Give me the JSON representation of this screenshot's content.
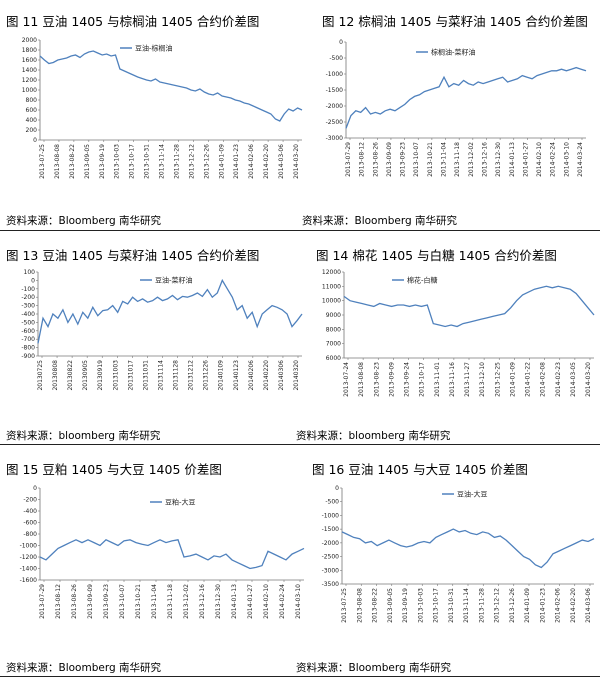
{
  "line_color": "#4F81BD",
  "figures": [
    {
      "title": "图 11 豆油 1405 与棕榈油 1405 合约价差图",
      "source": "资料来源：Bloomberg 南华研究"
    },
    {
      "title": "图 12 棕榈油 1405 与菜籽油 1405 合约价差图",
      "source": "资料来源：Bloomberg 南华研究"
    },
    {
      "title": "图 13 豆油 1405 与菜籽油 1405 合约价差图",
      "source": "资料来源：bloomberg 南华研究"
    },
    {
      "title": "图 14 棉花 1405 与白糖 1405 合约价差图",
      "source": "资料来源：bloomberg 南华研究"
    },
    {
      "title": "图 15 豆粕 1405 与大豆 1405 价差图",
      "source": "资料来源：Bloomberg 南华研究"
    },
    {
      "title": "图 16 豆油 1405 与大豆 1405 价差图",
      "source": "资料来源：Bloomberg 南华研究"
    }
  ],
  "chart_data": [
    {
      "type": "line",
      "legend": "豆油-棕榈油",
      "ylim": [
        0,
        2000
      ],
      "yticks": [
        "2000",
        "1800",
        "1600",
        "1400",
        "1200",
        "1000",
        "800",
        "600",
        "400",
        "200",
        "0"
      ],
      "xticks": [
        "2013-07-25",
        "2013-08-08",
        "2013-08-22",
        "2013-09-05",
        "2013-09-19",
        "2013-10-03",
        "2013-10-17",
        "2013-10-31",
        "2013-11-14",
        "2013-11-28",
        "2013-12-12",
        "2013-12-26",
        "2014-01-09",
        "2014-01-23",
        "2014-02-06",
        "2014-02-20",
        "2014-03-06",
        "2014-03-20"
      ],
      "values": [
        1680,
        1600,
        1530,
        1550,
        1600,
        1620,
        1640,
        1680,
        1700,
        1650,
        1720,
        1760,
        1780,
        1740,
        1700,
        1720,
        1680,
        1700,
        1420,
        1380,
        1340,
        1300,
        1260,
        1230,
        1200,
        1180,
        1220,
        1160,
        1140,
        1120,
        1100,
        1080,
        1060,
        1040,
        1000,
        980,
        1020,
        960,
        920,
        900,
        940,
        880,
        860,
        840,
        800,
        780,
        740,
        720,
        680,
        640,
        600,
        560,
        520,
        420,
        380,
        520,
        620,
        580,
        640,
        600
      ]
    },
    {
      "type": "line",
      "legend": "棕榈油-菜籽油",
      "ylim": [
        -3000,
        0
      ],
      "yticks": [
        "0",
        "-500",
        "-1000",
        "-1500",
        "-2000",
        "-2500",
        "-3000"
      ],
      "xticks": [
        "2013-07-29",
        "2013-08-12",
        "2013-08-26",
        "2013-09-09",
        "2013-09-23",
        "2013-10-07",
        "2013-10-21",
        "2013-11-04",
        "2013-11-18",
        "2013-12-02",
        "2013-12-16",
        "2013-12-30",
        "2014-01-13",
        "2014-01-27",
        "2014-02-10",
        "2014-02-24",
        "2014-03-10",
        "2014-03-24"
      ],
      "values": [
        -2700,
        -2300,
        -2150,
        -2200,
        -2050,
        -2250,
        -2200,
        -2250,
        -2150,
        -2100,
        -2150,
        -2050,
        -1950,
        -1800,
        -1700,
        -1650,
        -1550,
        -1500,
        -1450,
        -1400,
        -1100,
        -1400,
        -1300,
        -1350,
        -1200,
        -1300,
        -1350,
        -1250,
        -1300,
        -1250,
        -1200,
        -1150,
        -1100,
        -1250,
        -1200,
        -1150,
        -1050,
        -1100,
        -1150,
        -1050,
        -1000,
        -950,
        -900,
        -900,
        -850,
        -900,
        -850,
        -800,
        -850,
        -900
      ]
    },
    {
      "type": "line",
      "legend": "豆油-菜籽油",
      "ylim": [
        -900,
        100
      ],
      "yticks": [
        "100",
        "0",
        "-100",
        "-200",
        "-300",
        "-400",
        "-500",
        "-600",
        "-700",
        "-800",
        "-900"
      ],
      "xticks": [
        "20130725",
        "20130808",
        "20130822",
        "20130905",
        "20130919",
        "20131003",
        "20131017",
        "20131031",
        "20131114",
        "20131128",
        "20131212",
        "20131226",
        "20140109",
        "20140123",
        "20140206",
        "20140220",
        "20140306",
        "20140320"
      ],
      "values": [
        -750,
        -450,
        -550,
        -400,
        -450,
        -350,
        -500,
        -400,
        -520,
        -380,
        -450,
        -320,
        -420,
        -360,
        -350,
        -300,
        -380,
        -250,
        -280,
        -200,
        -250,
        -220,
        -260,
        -240,
        -200,
        -240,
        -220,
        -180,
        -230,
        -190,
        -200,
        -180,
        -150,
        -190,
        -110,
        -200,
        -150,
        0,
        -100,
        -200,
        -350,
        -300,
        -450,
        -380,
        -550,
        -400,
        -350,
        -300,
        -320,
        -350,
        -400,
        -550,
        -480,
        -400
      ]
    },
    {
      "type": "line",
      "legend": "棉花-白糖",
      "ylim": [
        0,
        12000
      ],
      "yticks": [
        "12000",
        "11000",
        "10000",
        "9000",
        "8000",
        "7000",
        "6000"
      ],
      "xticks": [
        "2013-07-24",
        "2013-08-08",
        "2013-08-23",
        "2013-09-09",
        "2013-09-24",
        "2013-10-17",
        "2013-11-01",
        "2013-11-16",
        "2013-11-27",
        "2013-12-10",
        "2013-12-25",
        "2014-01-09",
        "2014-01-22",
        "2014-02-08",
        "2014-02-23",
        "2014-03-05",
        "2014-03-20"
      ],
      "values": [
        10300,
        10000,
        9900,
        9800,
        9700,
        9600,
        9800,
        9700,
        9600,
        9700,
        9700,
        9600,
        9700,
        9600,
        9700,
        8400,
        8300,
        8200,
        8300,
        8200,
        8400,
        8500,
        8600,
        8700,
        8800,
        8900,
        9000,
        9100,
        9500,
        10000,
        10400,
        10600,
        10800,
        10900,
        11000,
        10900,
        11000,
        10900,
        10800,
        10500,
        10000,
        9500,
        9000
      ]
    },
    {
      "type": "line",
      "legend": "豆粕-大豆",
      "ylim": [
        -1600,
        0
      ],
      "yticks": [
        "0",
        "-200",
        "-400",
        "-600",
        "-800",
        "-1000",
        "-1200",
        "-1400",
        "-1600"
      ],
      "xticks": [
        "2013-07-29",
        "2013-08-12",
        "2013-08-26",
        "2013-09-09",
        "2013-09-23",
        "2013-10-07",
        "2013-10-21",
        "2013-11-04",
        "2013-11-18",
        "2013-12-02",
        "2013-12-16",
        "2013-12-30",
        "2014-01-13",
        "2014-01-27",
        "2014-02-10",
        "2014-02-24",
        "2014-03-10"
      ],
      "values": [
        -1200,
        -1250,
        -1150,
        -1050,
        -1000,
        -950,
        -900,
        -950,
        -900,
        -950,
        -1000,
        -900,
        -950,
        -1000,
        -920,
        -900,
        -950,
        -980,
        -1000,
        -950,
        -900,
        -950,
        -920,
        -900,
        -1200,
        -1180,
        -1150,
        -1200,
        -1250,
        -1180,
        -1200,
        -1150,
        -1250,
        -1300,
        -1350,
        -1400,
        -1380,
        -1350,
        -1100,
        -1150,
        -1200,
        -1250,
        -1150,
        -1100,
        -1050
      ]
    },
    {
      "type": "line",
      "legend": "豆油-大豆",
      "ylim": [
        -3500,
        0
      ],
      "yticks": [
        "0",
        "-500",
        "-1000",
        "-1500",
        "-2000",
        "-2500",
        "-3000",
        "-3500"
      ],
      "xticks": [
        "2013-07-25",
        "2013-08-08",
        "2013-08-22",
        "2013-09-05",
        "2013-09-19",
        "2013-10-03",
        "2013-10-17",
        "2013-10-31",
        "2013-11-14",
        "2013-11-28",
        "2013-12-12",
        "2013-12-26",
        "2014-01-09",
        "2014-01-23",
        "2014-02-06",
        "2014-02-20",
        "2014-03-06"
      ],
      "values": [
        -1600,
        -1700,
        -1800,
        -1850,
        -2000,
        -1950,
        -2100,
        -2000,
        -1900,
        -2000,
        -2100,
        -2150,
        -2100,
        -2000,
        -1950,
        -2000,
        -1800,
        -1700,
        -1600,
        -1500,
        -1600,
        -1550,
        -1650,
        -1700,
        -1600,
        -1650,
        -1800,
        -1750,
        -1900,
        -2100,
        -2300,
        -2500,
        -2600,
        -2800,
        -2900,
        -2700,
        -2400,
        -2300,
        -2200,
        -2100,
        -2000,
        -1900,
        -1950,
        -1850
      ]
    }
  ]
}
